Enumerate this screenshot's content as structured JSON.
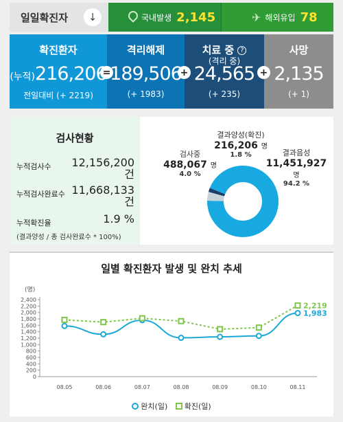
{
  "top": {
    "daily_label": "일일확진자",
    "arrow_glyph": "↓",
    "domestic_label": "국내발생",
    "domestic_value": "2,145",
    "overseas_label": "해외유입",
    "overseas_value": "78"
  },
  "cards": {
    "confirmed": {
      "title": "확진환자",
      "prefix": "(누적)",
      "value": "216,206",
      "delta": "전일대비 (+ 2219)"
    },
    "released": {
      "title": "격리해제",
      "value": "189,506",
      "delta": "(+ 1983)"
    },
    "treatment": {
      "title": "치료 중",
      "subtitle": "(격리 중)",
      "value": "24,565",
      "delta": "(+ 235)"
    },
    "deaths": {
      "title": "사망",
      "value": "2,135",
      "delta": "(+ 1)"
    },
    "op_equals": "=",
    "op_plus": "+"
  },
  "tests": {
    "title": "검사현황",
    "total_label": "누적검사수",
    "total_value": "12,156,200",
    "total_unit": "건",
    "done_label": "누적검사완료수",
    "done_value": "11,668,133",
    "done_unit": "건",
    "rate_label": "누적확진율",
    "rate_value": "1.9 %",
    "note": "(결과양성 / 총 검사완료수 * 100%)"
  },
  "donut": {
    "positive_label": "결과양성(확진)",
    "positive_value": "216,206",
    "positive_pct": "1.8 %",
    "testing_label": "검사중",
    "testing_value": "488,067",
    "testing_pct": "4.0 %",
    "negative_label": "결과음성",
    "negative_value": "11,451,927",
    "negative_pct": "94.2 %",
    "unit": "명",
    "colors": {
      "negative": "#18a9e0",
      "testing": "#c8d3d9",
      "positive": "#1b3f66"
    }
  },
  "chart_data": {
    "type": "line",
    "title": "일별 확진환자 발생 및 완치 추세",
    "ylabel": "(명)",
    "categories": [
      "08.05",
      "08.06",
      "08.07",
      "08.08",
      "08.09",
      "08.10",
      "08.11"
    ],
    "yticks": [
      "0",
      "200",
      "400",
      "600",
      "800",
      "1,000",
      "1,200",
      "1,400",
      "1,600",
      "1,800",
      "2,000",
      "2,200",
      "2,400"
    ],
    "ylim": [
      0,
      2400
    ],
    "series": [
      {
        "name": "완치(일)",
        "values": [
          1580,
          1320,
          1760,
          1210,
          1240,
          1270,
          1983
        ],
        "color": "#1aa8d8",
        "end_label": "1,983"
      },
      {
        "name": "확진(일)",
        "values": [
          1770,
          1700,
          1820,
          1730,
          1480,
          1530,
          2219
        ],
        "color": "#7fc54a",
        "end_label": "2,219"
      }
    ]
  }
}
